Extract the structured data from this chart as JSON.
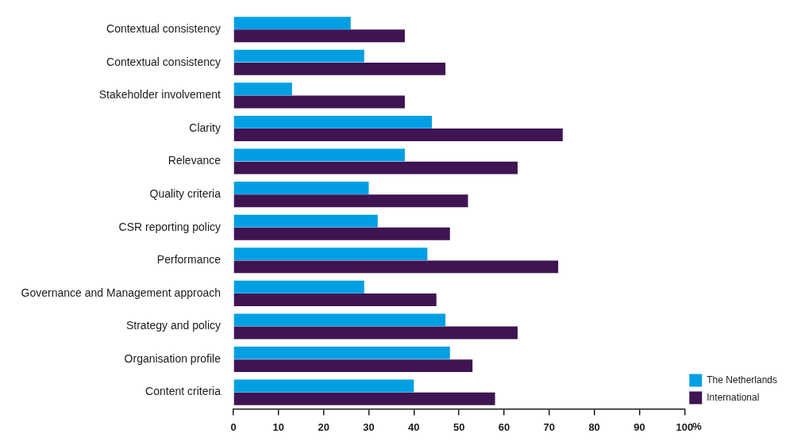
{
  "chart_data": {
    "type": "bar",
    "orientation": "horizontal",
    "xlabel": "%",
    "categories": [
      "Contextual consistency",
      "Contextual consistency",
      "Stakeholder involvement",
      "Clarity",
      "Relevance",
      "Quality criteria",
      "CSR reporting policy",
      "Performance",
      "Governance and Management approach",
      "Strategy and policy",
      "Organisation profile",
      "Content criteria"
    ],
    "series": [
      {
        "name": "The Netherlands",
        "color": "#009fe3",
        "values": [
          26,
          29,
          13,
          44,
          38,
          30,
          32,
          43,
          29,
          47,
          48,
          40
        ]
      },
      {
        "name": "International",
        "color": "#3f1453",
        "values": [
          38,
          47,
          38,
          73,
          63,
          52,
          48,
          72,
          45,
          63,
          53,
          58
        ]
      }
    ],
    "xlim": [
      0,
      100
    ],
    "xticks": [
      0,
      10,
      20,
      30,
      40,
      50,
      60,
      70,
      80,
      90,
      100
    ],
    "grid": false,
    "legend": "bottom right"
  }
}
